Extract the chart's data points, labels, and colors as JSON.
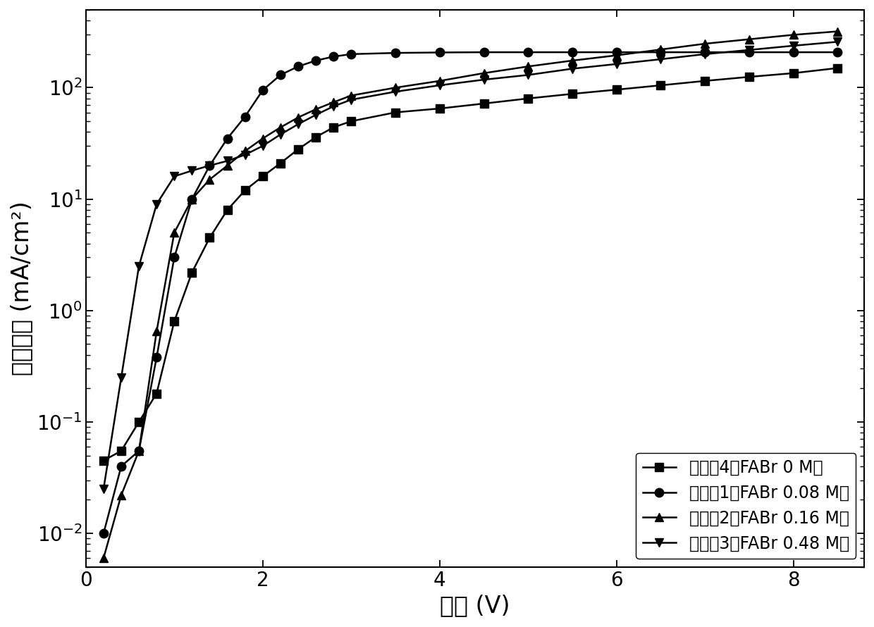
{
  "series": [
    {
      "label": "实施奒4（FABr 0 M）",
      "marker": "s",
      "x": [
        0.2,
        0.4,
        0.6,
        0.8,
        1.0,
        1.2,
        1.4,
        1.6,
        1.8,
        2.0,
        2.2,
        2.4,
        2.6,
        2.8,
        3.0,
        3.5,
        4.0,
        4.5,
        5.0,
        5.5,
        6.0,
        6.5,
        7.0,
        7.5,
        8.0,
        8.5
      ],
      "y": [
        0.045,
        0.055,
        0.1,
        0.18,
        0.8,
        2.2,
        4.5,
        8.0,
        12,
        16,
        21,
        28,
        36,
        44,
        50,
        60,
        65,
        72,
        80,
        88,
        96,
        105,
        115,
        125,
        135,
        150
      ]
    },
    {
      "label": "实施奒1（FABr 0.08 M）",
      "marker": "o",
      "x": [
        0.2,
        0.4,
        0.6,
        0.8,
        1.0,
        1.2,
        1.4,
        1.6,
        1.8,
        2.0,
        2.2,
        2.4,
        2.6,
        2.8,
        3.0,
        3.5,
        4.0,
        4.5,
        5.0,
        5.5,
        6.0,
        6.5,
        7.0,
        7.5,
        8.0,
        8.5
      ],
      "y": [
        0.01,
        0.04,
        0.055,
        0.38,
        3.0,
        10,
        20,
        35,
        55,
        95,
        130,
        155,
        175,
        190,
        200,
        205,
        207,
        208,
        208,
        208,
        208,
        208,
        208,
        208,
        208,
        208
      ]
    },
    {
      "label": "实施奒2（FABr 0.16 M）",
      "marker": "^",
      "x": [
        0.2,
        0.4,
        0.6,
        0.8,
        1.0,
        1.2,
        1.4,
        1.6,
        1.8,
        2.0,
        2.2,
        2.4,
        2.6,
        2.8,
        3.0,
        3.5,
        4.0,
        4.5,
        5.0,
        5.5,
        6.0,
        6.5,
        7.0,
        7.5,
        8.0,
        8.5
      ],
      "y": [
        0.006,
        0.022,
        0.055,
        0.65,
        5.0,
        10,
        15,
        20,
        27,
        35,
        44,
        54,
        64,
        74,
        85,
        100,
        115,
        135,
        155,
        175,
        195,
        220,
        248,
        272,
        298,
        320
      ]
    },
    {
      "label": "实施奒3（FABr 0.48 M）",
      "marker": "v",
      "x": [
        0.2,
        0.4,
        0.6,
        0.8,
        1.0,
        1.2,
        1.4,
        1.6,
        1.8,
        2.0,
        2.2,
        2.4,
        2.6,
        2.8,
        3.0,
        3.5,
        4.0,
        4.5,
        5.0,
        5.5,
        6.0,
        6.5,
        7.0,
        7.5,
        8.0,
        8.5
      ],
      "y": [
        0.025,
        0.25,
        2.5,
        9.0,
        16,
        18,
        20,
        22,
        25,
        30,
        38,
        47,
        57,
        68,
        78,
        92,
        105,
        118,
        130,
        148,
        163,
        180,
        200,
        218,
        238,
        258
      ]
    }
  ],
  "xlabel": "电压 (V)",
  "ylabel": "电流密度 (mA/cm²)",
  "xlim": [
    0,
    8.8
  ],
  "ylim_log": [
    0.005,
    500
  ],
  "xticks": [
    0,
    2,
    4,
    6,
    8
  ],
  "background_color": "#ffffff",
  "line_color": "#000000",
  "legend_loc": "lower right",
  "fontsize_label": 24,
  "fontsize_tick": 20,
  "fontsize_legend": 17,
  "linewidth": 1.8,
  "markersize": 9
}
